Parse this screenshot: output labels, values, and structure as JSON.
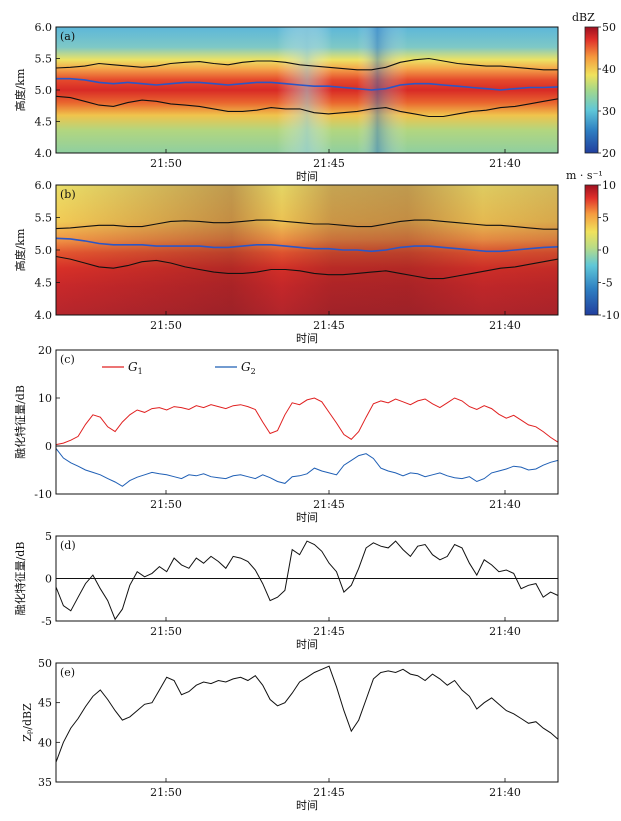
{
  "figure": {
    "x_tick_labels": [
      "21:50",
      "21:45",
      "21:40"
    ],
    "x_axis_label": "时间"
  },
  "chart_data": [
    {
      "panel": "(a)",
      "type": "heatmap",
      "ylabel": "高度/km",
      "ylim": [
        4.0,
        6.0
      ],
      "y_ticks": [
        "4.0",
        "4.5",
        "5.0",
        "5.5",
        "6.0"
      ],
      "xlabel": "时间",
      "x_ticks": [
        "21:50",
        "21:45",
        "21:40"
      ],
      "colorbar": {
        "unit": "dBZ",
        "range": [
          20,
          50
        ],
        "ticks": [
          "20",
          "30",
          "40",
          "50"
        ]
      },
      "lines": [
        {
          "name": "top boundary",
          "color": "#111111",
          "y": [
            5.35,
            5.36,
            5.38,
            5.42,
            5.4,
            5.38,
            5.36,
            5.38,
            5.42,
            5.44,
            5.45,
            5.42,
            5.4,
            5.44,
            5.46,
            5.46,
            5.44,
            5.4,
            5.38,
            5.36,
            5.34,
            5.32,
            5.32,
            5.36,
            5.44,
            5.48,
            5.5,
            5.46,
            5.42,
            5.4,
            5.38,
            5.38,
            5.36,
            5.34,
            5.32,
            5.32
          ]
        },
        {
          "name": "melting peak",
          "color": "#2b56c6",
          "y": [
            5.18,
            5.18,
            5.16,
            5.12,
            5.1,
            5.12,
            5.1,
            5.08,
            5.1,
            5.12,
            5.12,
            5.1,
            5.08,
            5.1,
            5.12,
            5.12,
            5.1,
            5.08,
            5.06,
            5.06,
            5.04,
            5.02,
            5.0,
            5.02,
            5.08,
            5.1,
            5.1,
            5.08,
            5.06,
            5.04,
            5.02,
            5.0,
            5.02,
            5.04,
            5.04,
            5.05
          ]
        },
        {
          "name": "bottom boundary",
          "color": "#111111",
          "y": [
            4.9,
            4.88,
            4.82,
            4.76,
            4.74,
            4.8,
            4.84,
            4.82,
            4.78,
            4.76,
            4.74,
            4.7,
            4.66,
            4.66,
            4.68,
            4.72,
            4.7,
            4.7,
            4.64,
            4.62,
            4.64,
            4.66,
            4.7,
            4.72,
            4.66,
            4.62,
            4.58,
            4.58,
            4.62,
            4.66,
            4.68,
            4.72,
            4.74,
            4.78,
            4.82,
            4.86
          ]
        }
      ]
    },
    {
      "panel": "(b)",
      "type": "heatmap",
      "ylabel": "高度/km",
      "ylim": [
        4.0,
        6.0
      ],
      "y_ticks": [
        "4.0",
        "4.5",
        "5.0",
        "5.5",
        "6.0"
      ],
      "xlabel": "时间",
      "x_ticks": [
        "21:50",
        "21:45",
        "21:40"
      ],
      "colorbar": {
        "unit": "m · s⁻¹",
        "range": [
          -10,
          10
        ],
        "ticks": [
          "-10",
          "-5",
          "0",
          "5",
          "10"
        ]
      },
      "lines": [
        {
          "name": "top boundary",
          "color": "#111111",
          "y": [
            5.33,
            5.34,
            5.36,
            5.38,
            5.38,
            5.36,
            5.36,
            5.4,
            5.44,
            5.45,
            5.44,
            5.42,
            5.42,
            5.44,
            5.46,
            5.46,
            5.44,
            5.42,
            5.4,
            5.4,
            5.38,
            5.36,
            5.36,
            5.4,
            5.44,
            5.46,
            5.46,
            5.44,
            5.42,
            5.4,
            5.38,
            5.38,
            5.36,
            5.34,
            5.32,
            5.32
          ]
        },
        {
          "name": "melting peak",
          "color": "#2b56c6",
          "y": [
            5.18,
            5.17,
            5.14,
            5.1,
            5.08,
            5.08,
            5.08,
            5.06,
            5.06,
            5.06,
            5.06,
            5.04,
            5.04,
            5.06,
            5.08,
            5.08,
            5.06,
            5.04,
            5.02,
            5.02,
            5.0,
            5.0,
            4.98,
            5.0,
            5.04,
            5.06,
            5.06,
            5.04,
            5.02,
            5.0,
            4.98,
            4.98,
            5.0,
            5.02,
            5.04,
            5.05
          ]
        },
        {
          "name": "bottom boundary",
          "color": "#111111",
          "y": [
            4.9,
            4.86,
            4.8,
            4.74,
            4.72,
            4.76,
            4.82,
            4.84,
            4.8,
            4.74,
            4.7,
            4.66,
            4.64,
            4.64,
            4.66,
            4.7,
            4.7,
            4.68,
            4.64,
            4.62,
            4.62,
            4.64,
            4.66,
            4.68,
            4.64,
            4.6,
            4.56,
            4.56,
            4.6,
            4.64,
            4.68,
            4.72,
            4.74,
            4.78,
            4.82,
            4.86
          ]
        }
      ]
    },
    {
      "panel": "(c)",
      "type": "line",
      "ylabel": "融化特征量/dB",
      "ylim": [
        -10,
        20
      ],
      "y_ticks": [
        "-10",
        "0",
        "10",
        "20"
      ],
      "xlabel": "时间",
      "x_ticks": [
        "21:50",
        "21:45",
        "21:40"
      ],
      "zero_line": true,
      "series": [
        {
          "name": "G1",
          "legend_main": "G",
          "legend_sub": "1",
          "color": "#e02020",
          "values": [
            0.3,
            0.6,
            1.2,
            2.0,
            4.5,
            6.5,
            6.0,
            4.0,
            3.0,
            5.0,
            6.5,
            7.5,
            7.0,
            7.8,
            8.0,
            7.5,
            8.2,
            8.0,
            7.6,
            8.4,
            8.0,
            8.6,
            8.2,
            7.8,
            8.4,
            8.6,
            8.2,
            7.6,
            5.0,
            2.6,
            3.2,
            6.5,
            9.0,
            8.6,
            9.6,
            10.0,
            9.2,
            7.0,
            4.8,
            2.4,
            1.4,
            3.0,
            6.0,
            8.8,
            9.4,
            9.0,
            9.8,
            9.2,
            8.6,
            9.4,
            9.8,
            8.8,
            8.0,
            9.0,
            10.0,
            9.4,
            8.2,
            7.6,
            8.4,
            7.8,
            6.6,
            5.8,
            6.4,
            5.4,
            4.4,
            4.0,
            3.0,
            1.8,
            0.8
          ]
        },
        {
          "name": "G2",
          "legend_main": "G",
          "legend_sub": "2",
          "color": "#1f5fb5",
          "values": [
            -0.5,
            -2.5,
            -3.5,
            -4.2,
            -5.0,
            -5.5,
            -6.0,
            -6.8,
            -7.5,
            -8.4,
            -7.2,
            -6.5,
            -6.0,
            -5.5,
            -5.8,
            -6.0,
            -6.4,
            -6.8,
            -6.0,
            -6.2,
            -5.8,
            -6.4,
            -6.6,
            -6.8,
            -6.2,
            -6.0,
            -6.4,
            -6.8,
            -6.0,
            -6.6,
            -7.4,
            -7.8,
            -6.4,
            -6.2,
            -5.8,
            -4.6,
            -5.2,
            -5.6,
            -6.0,
            -4.0,
            -3.0,
            -2.0,
            -1.6,
            -2.6,
            -4.6,
            -5.2,
            -5.6,
            -6.2,
            -5.6,
            -5.8,
            -6.4,
            -6.0,
            -5.6,
            -6.2,
            -6.6,
            -6.8,
            -6.4,
            -7.4,
            -6.8,
            -5.6,
            -5.2,
            -4.8,
            -4.2,
            -4.4,
            -5.0,
            -4.8,
            -4.0,
            -3.4,
            -3.0
          ]
        }
      ]
    },
    {
      "panel": "(d)",
      "type": "line",
      "ylabel": "融化特征量/dB",
      "ylim": [
        -5,
        5
      ],
      "y_ticks": [
        "-5",
        "0",
        "5"
      ],
      "xlabel": "时间",
      "x_ticks": [
        "21:50",
        "21:45",
        "21:40"
      ],
      "zero_line": true,
      "series": [
        {
          "name": "G1+G2",
          "color": "#111111",
          "values": [
            -1.0,
            -3.2,
            -3.8,
            -2.2,
            -0.6,
            0.4,
            -1.2,
            -2.6,
            -4.8,
            -3.6,
            -0.8,
            0.8,
            0.2,
            0.6,
            1.4,
            0.8,
            2.4,
            1.6,
            1.2,
            2.4,
            1.8,
            2.6,
            2.0,
            1.2,
            2.6,
            2.4,
            2.0,
            1.0,
            -0.6,
            -2.6,
            -2.2,
            -1.4,
            3.4,
            2.8,
            4.4,
            4.0,
            3.2,
            1.8,
            0.8,
            -1.6,
            -0.8,
            1.2,
            3.6,
            4.2,
            3.8,
            3.6,
            4.4,
            3.4,
            2.6,
            3.8,
            4.0,
            2.8,
            2.2,
            2.6,
            4.0,
            3.6,
            1.8,
            0.4,
            2.2,
            1.6,
            0.8,
            1.0,
            0.6,
            -1.2,
            -0.8,
            -0.6,
            -2.2,
            -1.6,
            -2.0
          ]
        }
      ]
    },
    {
      "panel": "(e)",
      "type": "line",
      "ylabel": "Zₚ/dBZ",
      "ylim": [
        35,
        50
      ],
      "y_ticks": [
        "35",
        "40",
        "45",
        "50"
      ],
      "xlabel": "时间",
      "x_ticks": [
        "21:50",
        "21:45",
        "21:40"
      ],
      "zero_line": false,
      "series": [
        {
          "name": "Zp",
          "color": "#111111",
          "values": [
            37.5,
            40.0,
            41.8,
            43.0,
            44.5,
            45.8,
            46.6,
            45.4,
            44.0,
            42.8,
            43.2,
            44.0,
            44.8,
            45.0,
            46.6,
            48.2,
            47.8,
            46.0,
            46.4,
            47.2,
            47.6,
            47.4,
            47.8,
            47.6,
            48.0,
            48.2,
            47.8,
            48.4,
            47.2,
            45.4,
            44.6,
            45.0,
            46.2,
            47.6,
            48.2,
            48.8,
            49.2,
            49.6,
            47.0,
            44.0,
            41.4,
            42.8,
            45.4,
            48.0,
            48.8,
            49.0,
            48.8,
            49.2,
            48.6,
            48.4,
            47.8,
            48.6,
            48.0,
            47.2,
            47.8,
            46.6,
            45.8,
            44.2,
            45.0,
            45.6,
            44.8,
            44.0,
            43.6,
            43.0,
            42.4,
            42.6,
            41.8,
            41.2,
            40.4
          ]
        }
      ]
    }
  ]
}
